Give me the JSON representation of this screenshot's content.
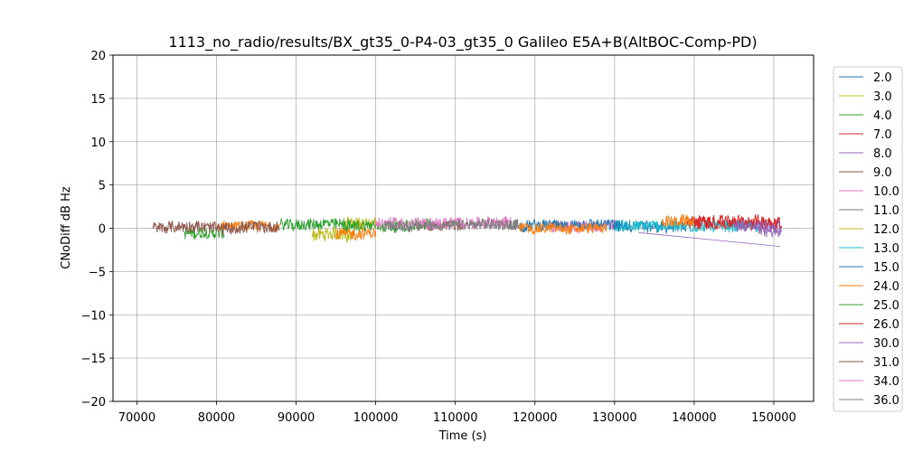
{
  "chart_data": {
    "type": "line",
    "title": "1113_no_radio/results/BX_gt35_0-P4-03_gt35_0 Galileo E5A+B(AltBOC-Comp-PD)",
    "xlabel": "Time (s)",
    "ylabel": "CNoDiff dB Hz",
    "xlim": [
      67000,
      155000
    ],
    "ylim": [
      -20,
      20
    ],
    "xticks": [
      70000,
      80000,
      90000,
      100000,
      110000,
      120000,
      130000,
      140000,
      150000
    ],
    "yticks": [
      -20,
      -15,
      -10,
      -5,
      0,
      5,
      10,
      15,
      20
    ],
    "xtick_labels": [
      "70000",
      "80000",
      "90000",
      "100000",
      "110000",
      "120000",
      "130000",
      "140000",
      "150000"
    ],
    "ytick_labels": [
      "−20",
      "−15",
      "−10",
      "−5",
      "0",
      "5",
      "10",
      "15",
      "20"
    ],
    "grid": true,
    "legend_position": "outside-right",
    "series": [
      {
        "name": "2.0",
        "color": "#1f77b4",
        "segments": [
          {
            "x_start": 130000,
            "x_end": 139000,
            "mean": 0.2,
            "amp": 0.7
          }
        ]
      },
      {
        "name": "3.0",
        "color": "#bcbd22",
        "segments": [
          {
            "x_start": 92000,
            "x_end": 97000,
            "mean": -0.7,
            "amp": 0.8
          }
        ]
      },
      {
        "name": "4.0",
        "color": "#2ca02c",
        "segments": [
          {
            "x_start": 76000,
            "x_end": 81000,
            "mean": -0.6,
            "amp": 0.7
          }
        ]
      },
      {
        "name": "7.0",
        "color": "#d62728",
        "segments": [
          {
            "x_start": 139000,
            "x_end": 151000,
            "mean": 0.6,
            "amp": 0.8
          }
        ]
      },
      {
        "name": "8.0",
        "color": "#9467bd",
        "segments": [
          {
            "x_start": 148000,
            "x_end": 151000,
            "mean": -0.4,
            "amp": 0.7
          }
        ],
        "trend": [
          {
            "x": 133000,
            "y": -0.5
          },
          {
            "x": 150800,
            "y": -2.1
          }
        ]
      },
      {
        "name": "9.0",
        "color": "#8c564b",
        "segments": [
          {
            "x_start": 105000,
            "x_end": 111000,
            "mean": 0.3,
            "amp": 0.6
          }
        ]
      },
      {
        "name": "10.0",
        "color": "#e377c2",
        "segments": [
          {
            "x_start": 122000,
            "x_end": 130000,
            "mean": 0.2,
            "amp": 0.7
          }
        ]
      },
      {
        "name": "11.0",
        "color": "#7f7f7f",
        "segments": [
          {
            "x_start": 112000,
            "x_end": 118000,
            "mean": 0.4,
            "amp": 0.6
          }
        ]
      },
      {
        "name": "12.0",
        "color": "#bcbd22",
        "segments": [
          {
            "x_start": 96000,
            "x_end": 100000,
            "mean": 0.6,
            "amp": 0.7
          }
        ]
      },
      {
        "name": "13.0",
        "color": "#17becf",
        "segments": [
          {
            "x_start": 130000,
            "x_end": 148000,
            "mean": 0.3,
            "amp": 0.7
          }
        ]
      },
      {
        "name": "15.0",
        "color": "#1f77b4",
        "segments": [
          {
            "x_start": 118000,
            "x_end": 131000,
            "mean": 0.2,
            "amp": 0.7
          }
        ]
      },
      {
        "name": "24.0",
        "color": "#ff7f0e",
        "segments": [
          {
            "x_start": 80000,
            "x_end": 88000,
            "mean": 0.2,
            "amp": 0.6
          },
          {
            "x_start": 95000,
            "x_end": 100000,
            "mean": -0.6,
            "amp": 0.7
          },
          {
            "x_start": 118000,
            "x_end": 129000,
            "mean": 0.1,
            "amp": 0.6
          },
          {
            "x_start": 136000,
            "x_end": 140000,
            "mean": 0.8,
            "amp": 0.7
          }
        ]
      },
      {
        "name": "25.0",
        "color": "#2ca02c",
        "segments": [
          {
            "x_start": 88000,
            "x_end": 107000,
            "mean": 0.4,
            "amp": 0.7
          }
        ]
      },
      {
        "name": "26.0",
        "color": "#d62728",
        "segments": [
          {
            "x_start": 140000,
            "x_end": 150800,
            "mean": 0.7,
            "amp": 0.8
          }
        ]
      },
      {
        "name": "30.0",
        "color": "#9467bd",
        "segments": [
          {
            "x_start": 145000,
            "x_end": 150800,
            "mean": 0.3,
            "amp": 0.7
          }
        ]
      },
      {
        "name": "31.0",
        "color": "#8c564b",
        "segments": [
          {
            "x_start": 72000,
            "x_end": 88000,
            "mean": 0.1,
            "amp": 0.7
          }
        ]
      },
      {
        "name": "34.0",
        "color": "#e377c2",
        "segments": [
          {
            "x_start": 100000,
            "x_end": 117000,
            "mean": 0.6,
            "amp": 0.7
          }
        ]
      },
      {
        "name": "36.0",
        "color": "#7f7f7f",
        "segments": [
          {
            "x_start": 101000,
            "x_end": 118000,
            "mean": 0.4,
            "amp": 0.6
          }
        ]
      }
    ]
  }
}
